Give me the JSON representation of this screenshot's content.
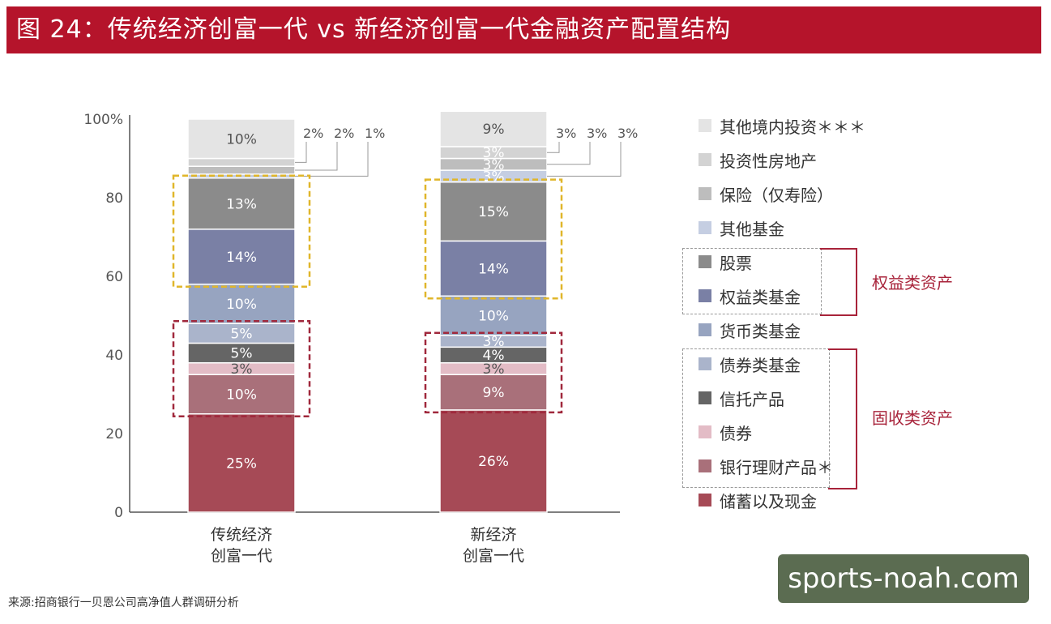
{
  "header": {
    "title": "图 24：传统经济创富一代 vs 新经济创富一代金融资产配置结构"
  },
  "chart_data": {
    "type": "bar",
    "stacked": true,
    "ylim": [
      0,
      100
    ],
    "yticks": [
      "0",
      "20",
      "40",
      "60",
      "80",
      "100%"
    ],
    "categories": [
      {
        "line1": "传统经济",
        "line2": "创富一代"
      },
      {
        "line1": "新经济",
        "line2": "创富一代"
      }
    ],
    "series": [
      {
        "name": "储蓄以及现金",
        "color": "#a64a56",
        "values": [
          25,
          26
        ],
        "labels": [
          "25%",
          "26%"
        ]
      },
      {
        "name": "银行理财产品＊",
        "color": "#a9707a",
        "values": [
          10,
          9
        ],
        "labels": [
          "10%",
          "9%"
        ]
      },
      {
        "name": "债券",
        "color": "#e3bcc6",
        "values": [
          3,
          3
        ],
        "labels": [
          "3%",
          "3%"
        ]
      },
      {
        "name": "信托产品",
        "color": "#656565",
        "values": [
          5,
          4
        ],
        "labels": [
          "5%",
          "4%"
        ]
      },
      {
        "name": "债券类基金",
        "color": "#aab4cb",
        "values": [
          5,
          3
        ],
        "labels": [
          "5%",
          "3%"
        ]
      },
      {
        "name": "货币类基金",
        "color": "#97a4c0",
        "values": [
          10,
          10
        ],
        "labels": [
          "10%",
          "10%"
        ]
      },
      {
        "name": "权益类基金",
        "color": "#7a80a5",
        "values": [
          14,
          14
        ],
        "labels": [
          "14%",
          "14%"
        ]
      },
      {
        "name": "股票",
        "color": "#8b8b8b",
        "values": [
          13,
          15
        ],
        "labels": [
          "13%",
          "15%"
        ]
      },
      {
        "name": "其他基金",
        "color": "#c5cee2",
        "values": [
          1,
          3
        ],
        "labels": [
          "1%",
          "3%"
        ]
      },
      {
        "name": "保险（仅寿险）",
        "color": "#bdbdbd",
        "values": [
          2,
          3
        ],
        "labels": [
          "2%",
          "3%"
        ]
      },
      {
        "name": "投资性房地产",
        "color": "#d3d3d3",
        "values": [
          2,
          3
        ],
        "labels": [
          "2%",
          "3%"
        ]
      },
      {
        "name": "其他境内投资＊＊＊",
        "color": "#e4e4e4",
        "values": [
          10,
          9
        ],
        "labels": [
          "10%",
          "9%"
        ]
      }
    ],
    "highlight_boxes": [
      {
        "color": "#e0b62a",
        "bar_segments": [
          "权益类基金",
          "股票"
        ]
      },
      {
        "color": "#a0283c",
        "bar_segments": [
          "银行理财产品＊",
          "债券",
          "信托产品",
          "债券类基金"
        ]
      }
    ]
  },
  "legend_groups": {
    "equity": "权益类资产",
    "fixed_income": "固收类资产"
  },
  "source": "来源:招商银行一贝恩公司高净值人群调研分析",
  "watermark": "sports-noah.com"
}
